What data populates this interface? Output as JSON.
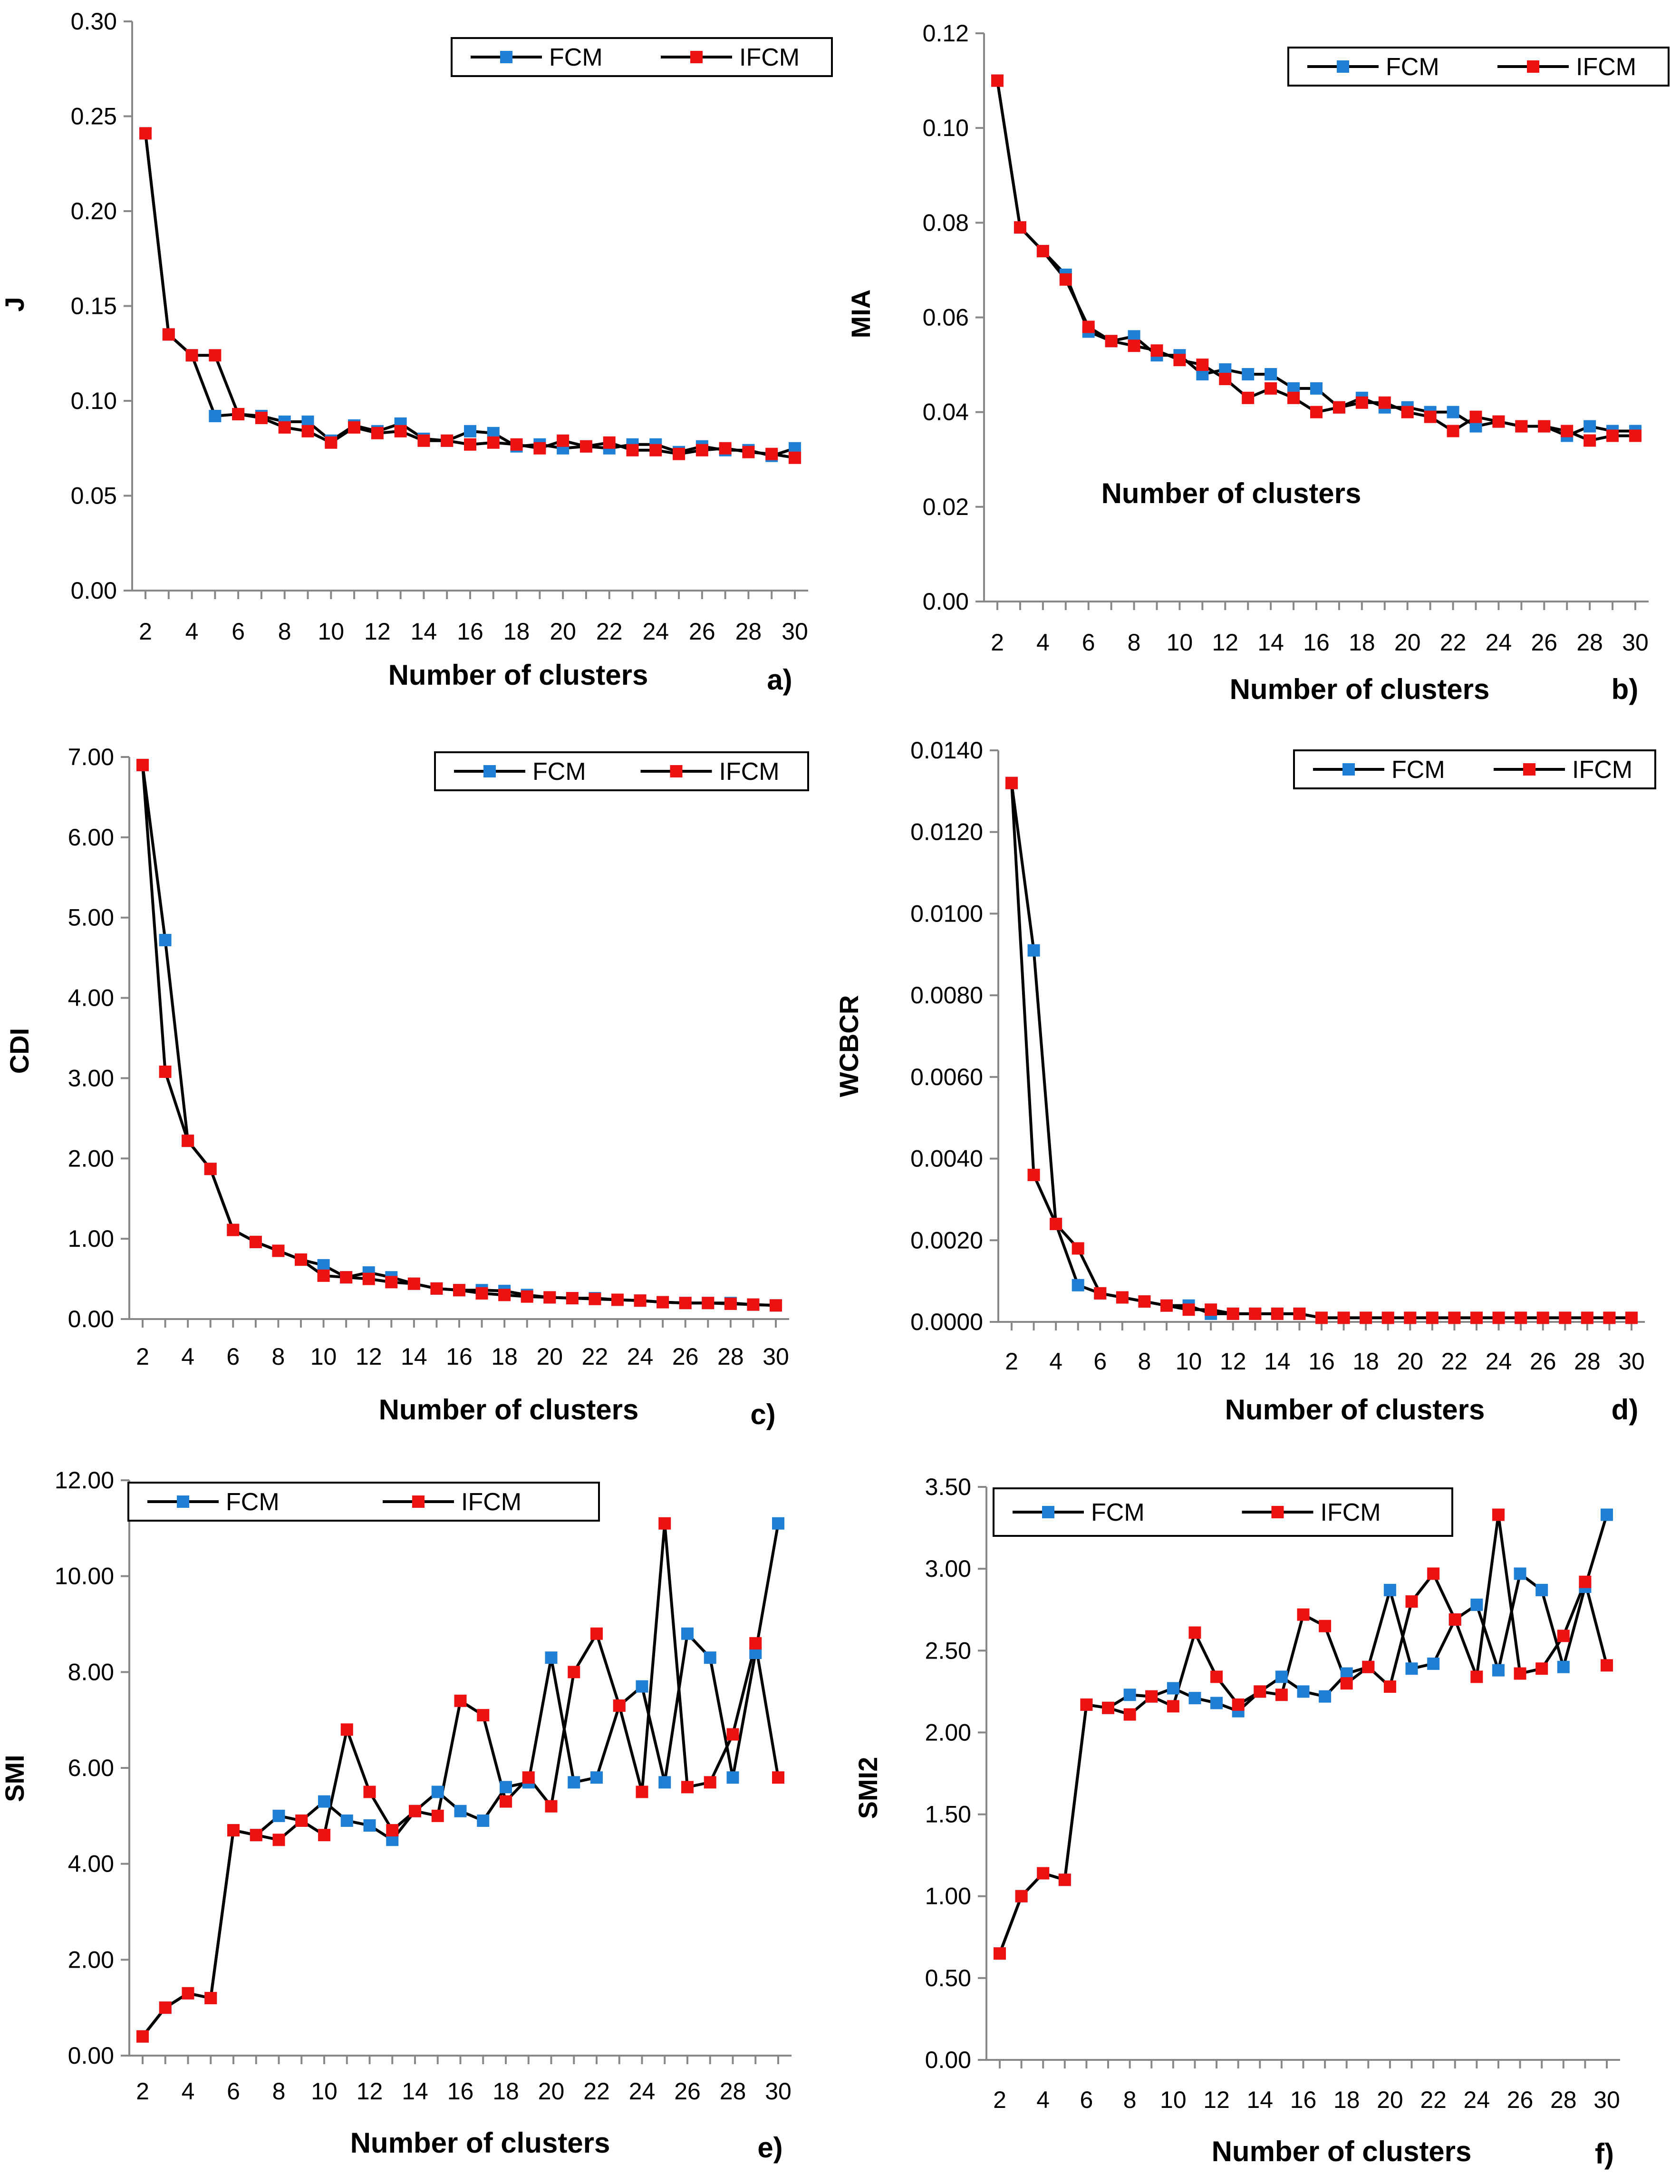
{
  "figure": {
    "type": "multi-panel line chart"
  },
  "legend_labels": [
    "FCM",
    "IFCM"
  ],
  "colors": {
    "series_fcm": "#1f7fd4",
    "series_ifcm": "#ee1111",
    "line": "#000000",
    "axis": "#888888",
    "text": "#000000"
  },
  "chart_data": [
    {
      "type": "line",
      "panel": "a)",
      "title": "",
      "xlabel": "Number of clusters",
      "ylabel": "J",
      "x": [
        2,
        3,
        4,
        5,
        6,
        7,
        8,
        9,
        10,
        11,
        12,
        13,
        14,
        15,
        16,
        17,
        18,
        19,
        20,
        21,
        22,
        23,
        24,
        25,
        26,
        27,
        28,
        29,
        30
      ],
      "xlim": [
        2,
        30
      ],
      "xticks": [
        "2",
        "4",
        "6",
        "8",
        "10",
        "12",
        "14",
        "16",
        "18",
        "20",
        "22",
        "24",
        "26",
        "28",
        "30"
      ],
      "ylim": [
        0,
        0.3
      ],
      "yticks": [
        "0.00",
        "0.05",
        "0.10",
        "0.15",
        "0.20",
        "0.25",
        "0.30"
      ],
      "legend_position": "top-right",
      "series": [
        {
          "name": "FCM",
          "values": [
            0.241,
            0.135,
            0.124,
            0.092,
            0.093,
            0.092,
            0.089,
            0.089,
            0.079,
            0.087,
            0.084,
            0.088,
            0.08,
            0.079,
            0.084,
            0.083,
            0.076,
            0.077,
            0.075,
            0.076,
            0.075,
            0.077,
            0.077,
            0.073,
            0.076,
            0.074,
            0.074,
            0.071,
            0.075
          ]
        },
        {
          "name": "IFCM",
          "values": [
            0.241,
            0.135,
            0.124,
            0.124,
            0.093,
            0.091,
            0.086,
            0.084,
            0.078,
            0.086,
            0.083,
            0.084,
            0.079,
            0.079,
            0.077,
            0.078,
            0.077,
            0.075,
            0.079,
            0.076,
            0.078,
            0.074,
            0.074,
            0.072,
            0.074,
            0.075,
            0.073,
            0.072,
            0.07
          ]
        }
      ]
    },
    {
      "type": "line",
      "panel": "b)",
      "title": "",
      "xlabel": "Number of clusters",
      "ylabel": "MIA",
      "x": [
        2,
        3,
        4,
        5,
        6,
        7,
        8,
        9,
        10,
        11,
        12,
        13,
        14,
        15,
        16,
        17,
        18,
        19,
        20,
        21,
        22,
        23,
        24,
        25,
        26,
        27,
        28,
        29,
        30
      ],
      "xlim": [
        2,
        30
      ],
      "xticks": [
        "2",
        "4",
        "6",
        "8",
        "10",
        "12",
        "14",
        "16",
        "18",
        "20",
        "22",
        "24",
        "26",
        "28",
        "30"
      ],
      "ylim": [
        0,
        0.12
      ],
      "yticks": [
        "0.00",
        "0.02",
        "0.04",
        "0.06",
        "0.08",
        "0.10",
        "0.12"
      ],
      "legend_position": "top-right",
      "annotation": "Number of clusters",
      "series": [
        {
          "name": "FCM",
          "values": [
            0.11,
            0.079,
            0.074,
            0.069,
            0.057,
            0.055,
            0.056,
            0.052,
            0.052,
            0.048,
            0.049,
            0.048,
            0.048,
            0.045,
            0.045,
            0.041,
            0.043,
            0.041,
            0.041,
            0.04,
            0.04,
            0.037,
            0.038,
            0.037,
            0.037,
            0.035,
            0.037,
            0.036,
            0.036
          ]
        },
        {
          "name": "IFCM",
          "values": [
            0.11,
            0.079,
            0.074,
            0.068,
            0.058,
            0.055,
            0.054,
            0.053,
            0.051,
            0.05,
            0.047,
            0.043,
            0.045,
            0.043,
            0.04,
            0.041,
            0.042,
            0.042,
            0.04,
            0.039,
            0.036,
            0.039,
            0.038,
            0.037,
            0.037,
            0.036,
            0.034,
            0.035,
            0.035
          ]
        }
      ]
    },
    {
      "type": "line",
      "panel": "c)",
      "title": "",
      "xlabel": "Number of clusters",
      "ylabel": "CDI",
      "x": [
        2,
        3,
        4,
        5,
        6,
        7,
        8,
        9,
        10,
        11,
        12,
        13,
        14,
        15,
        16,
        17,
        18,
        19,
        20,
        21,
        22,
        23,
        24,
        25,
        26,
        27,
        28,
        29,
        30
      ],
      "xlim": [
        2,
        30
      ],
      "xticks": [
        "2",
        "4",
        "6",
        "8",
        "10",
        "12",
        "14",
        "16",
        "18",
        "20",
        "22",
        "24",
        "26",
        "28",
        "30"
      ],
      "ylim": [
        0,
        7.0
      ],
      "yticks": [
        "0.00",
        "1.00",
        "2.00",
        "3.00",
        "4.00",
        "5.00",
        "6.00",
        "7.00"
      ],
      "legend_position": "top-right",
      "series": [
        {
          "name": "FCM",
          "values": [
            6.9,
            4.72,
            2.22,
            1.87,
            1.11,
            0.96,
            0.85,
            0.74,
            0.67,
            0.52,
            0.58,
            0.52,
            0.44,
            0.38,
            0.36,
            0.36,
            0.35,
            0.3,
            0.27,
            0.26,
            0.26,
            0.24,
            0.23,
            0.21,
            0.2,
            0.2,
            0.2,
            0.18,
            0.17
          ]
        },
        {
          "name": "IFCM",
          "values": [
            6.9,
            3.08,
            2.22,
            1.87,
            1.11,
            0.96,
            0.85,
            0.74,
            0.54,
            0.52,
            0.5,
            0.46,
            0.44,
            0.38,
            0.36,
            0.32,
            0.3,
            0.28,
            0.27,
            0.26,
            0.25,
            0.24,
            0.23,
            0.21,
            0.2,
            0.2,
            0.19,
            0.18,
            0.17
          ]
        }
      ]
    },
    {
      "type": "line",
      "panel": "d)",
      "title": "",
      "xlabel": "Number of clusters",
      "ylabel": "WCBCR",
      "x": [
        2,
        3,
        4,
        5,
        6,
        7,
        8,
        9,
        10,
        11,
        12,
        13,
        14,
        15,
        16,
        17,
        18,
        19,
        20,
        21,
        22,
        23,
        24,
        25,
        26,
        27,
        28,
        29,
        30
      ],
      "xlim": [
        2,
        30
      ],
      "xticks": [
        "2",
        "4",
        "6",
        "8",
        "10",
        "12",
        "14",
        "16",
        "18",
        "20",
        "22",
        "24",
        "26",
        "28",
        "30"
      ],
      "ylim": [
        0,
        0.014
      ],
      "yticks": [
        "0.0000",
        "0.0020",
        "0.0040",
        "0.0060",
        "0.0080",
        "0.0100",
        "0.0120",
        "0.0140"
      ],
      "legend_position": "top-right",
      "series": [
        {
          "name": "FCM",
          "values": [
            0.0132,
            0.0091,
            0.0024,
            0.0009,
            0.0007,
            0.0006,
            0.0005,
            0.0004,
            0.0004,
            0.0002,
            0.0002,
            0.0002,
            0.0002,
            0.0002,
            0.0001,
            0.0001,
            0.0001,
            0.0001,
            0.0001,
            0.0001,
            0.0001,
            0.0001,
            0.0001,
            0.0001,
            0.0001,
            0.0001,
            0.0001,
            0.0001,
            0.0001
          ]
        },
        {
          "name": "IFCM",
          "values": [
            0.0132,
            0.0036,
            0.0024,
            0.0018,
            0.0007,
            0.0006,
            0.0005,
            0.0004,
            0.0003,
            0.0003,
            0.0002,
            0.0002,
            0.0002,
            0.0002,
            0.0001,
            0.0001,
            0.0001,
            0.0001,
            0.0001,
            0.0001,
            0.0001,
            0.0001,
            0.0001,
            0.0001,
            0.0001,
            0.0001,
            0.0001,
            0.0001,
            0.0001
          ]
        }
      ]
    },
    {
      "type": "line",
      "panel": "e)",
      "title": "",
      "xlabel": "Number of clusters",
      "ylabel": "SMI",
      "x": [
        2,
        3,
        4,
        5,
        6,
        7,
        8,
        9,
        10,
        11,
        12,
        13,
        14,
        15,
        16,
        17,
        18,
        19,
        20,
        21,
        22,
        23,
        24,
        25,
        26,
        27,
        28,
        29,
        30
      ],
      "xlim": [
        2,
        30
      ],
      "xticks": [
        "2",
        "4",
        "6",
        "8",
        "10",
        "12",
        "14",
        "16",
        "18",
        "20",
        "22",
        "24",
        "26",
        "28",
        "30"
      ],
      "ylim": [
        0,
        12.0
      ],
      "yticks": [
        "0.00",
        "2.00",
        "4.00",
        "6.00",
        "8.00",
        "10.00",
        "12.00"
      ],
      "legend_position": "top-left",
      "series": [
        {
          "name": "FCM",
          "values": [
            0.4,
            1.0,
            1.3,
            1.2,
            4.7,
            4.6,
            5.0,
            4.9,
            5.3,
            4.9,
            4.8,
            4.5,
            5.1,
            5.5,
            5.1,
            4.9,
            5.6,
            5.7,
            8.3,
            5.7,
            5.8,
            7.3,
            7.7,
            5.7,
            8.8,
            8.3,
            5.8,
            8.4,
            11.1
          ]
        },
        {
          "name": "IFCM",
          "values": [
            0.4,
            1.0,
            1.3,
            1.2,
            4.7,
            4.6,
            4.5,
            4.9,
            4.6,
            6.8,
            5.5,
            4.7,
            5.1,
            5.0,
            7.4,
            7.1,
            5.3,
            5.8,
            5.2,
            8.0,
            8.8,
            7.3,
            5.5,
            11.1,
            5.6,
            5.7,
            6.7,
            8.6,
            5.8
          ]
        }
      ]
    },
    {
      "type": "line",
      "panel": "f)",
      "title": "",
      "xlabel": "Number of clusters",
      "ylabel": "SMI2",
      "x": [
        2,
        3,
        4,
        5,
        6,
        7,
        8,
        9,
        10,
        11,
        12,
        13,
        14,
        15,
        16,
        17,
        18,
        19,
        20,
        21,
        22,
        23,
        24,
        25,
        26,
        27,
        28,
        29,
        30
      ],
      "xlim": [
        2,
        30
      ],
      "xticks": [
        "2",
        "4",
        "6",
        "8",
        "10",
        "12",
        "14",
        "16",
        "18",
        "20",
        "22",
        "24",
        "26",
        "28",
        "30"
      ],
      "ylim": [
        0,
        3.5
      ],
      "yticks": [
        "0.00",
        "0.50",
        "1.00",
        "1.50",
        "2.00",
        "2.50",
        "3.00",
        "3.50"
      ],
      "legend_position": "top-left",
      "series": [
        {
          "name": "FCM",
          "values": [
            0.65,
            1.0,
            1.14,
            1.1,
            2.17,
            2.15,
            2.23,
            2.22,
            2.27,
            2.21,
            2.18,
            2.13,
            2.25,
            2.34,
            2.25,
            2.22,
            2.36,
            2.4,
            2.87,
            2.39,
            2.42,
            2.69,
            2.78,
            2.38,
            2.97,
            2.87,
            2.4,
            2.89,
            3.33
          ]
        },
        {
          "name": "IFCM",
          "values": [
            0.65,
            1.0,
            1.14,
            1.1,
            2.17,
            2.15,
            2.11,
            2.22,
            2.16,
            2.61,
            2.34,
            2.17,
            2.25,
            2.23,
            2.72,
            2.65,
            2.3,
            2.4,
            2.28,
            2.8,
            2.97,
            2.69,
            2.34,
            3.33,
            2.36,
            2.39,
            2.59,
            2.92,
            2.41
          ]
        }
      ]
    }
  ]
}
